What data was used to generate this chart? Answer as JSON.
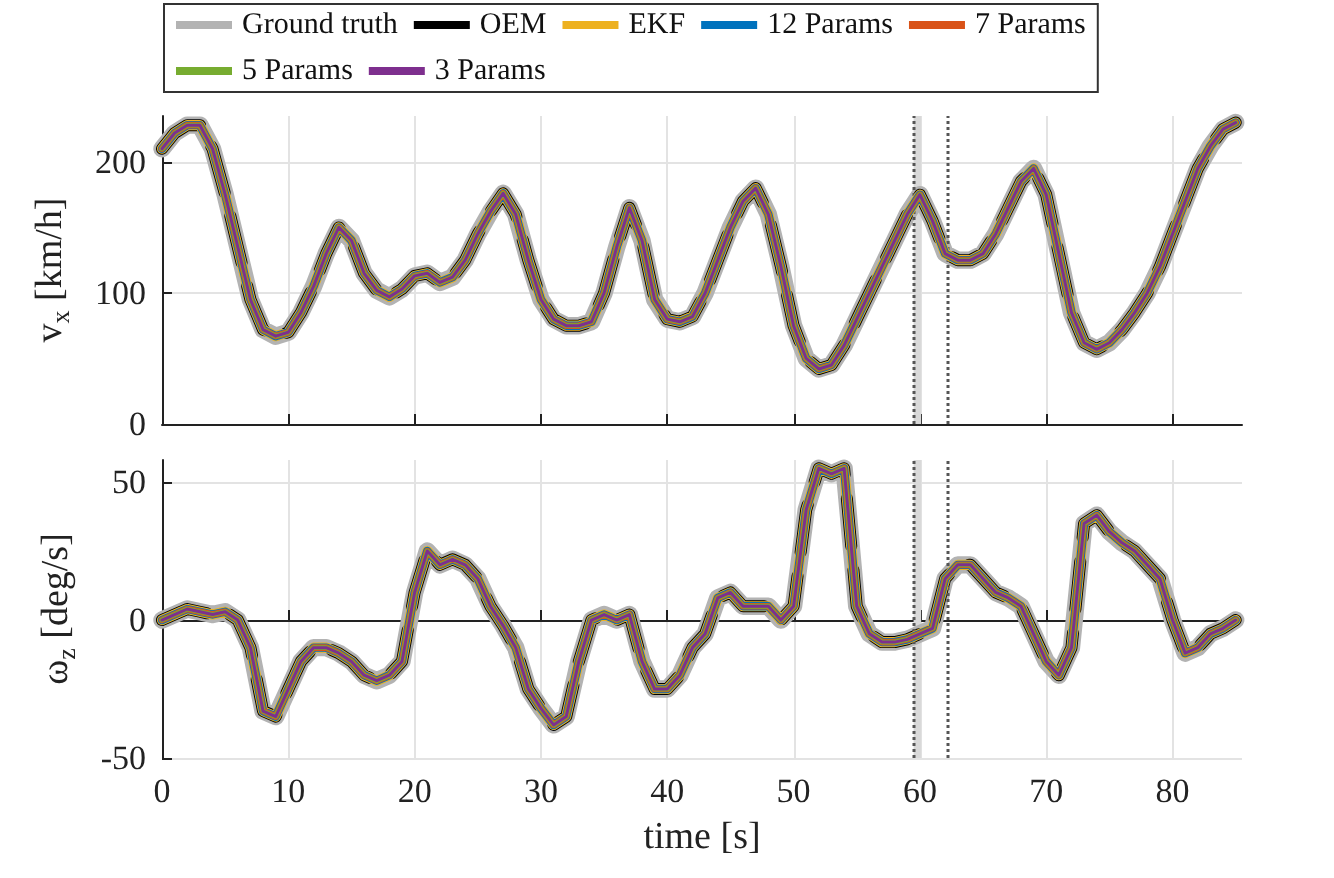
{
  "chart_data": [
    {
      "type": "line",
      "ylabel": "v$_{x}$ [km/h]",
      "xlim": [
        0,
        85.5
      ],
      "xticks": [
        0,
        10,
        20,
        30,
        40,
        50,
        60,
        70,
        80
      ],
      "ylim": [
        0,
        235
      ],
      "yticks": [
        0,
        100,
        200
      ],
      "tick_labels": "y",
      "grid": true,
      "legend": "top",
      "marker": "none",
      "x": [
        0,
        1,
        2,
        3,
        4,
        5,
        6,
        7,
        8,
        9,
        10,
        11,
        12,
        13,
        14,
        15,
        16,
        17,
        18,
        19,
        20,
        21,
        22,
        23,
        24,
        25,
        26,
        27,
        28,
        29,
        30,
        31,
        32,
        33,
        34,
        35,
        36,
        37,
        38,
        39,
        40,
        41,
        42,
        43,
        44,
        45,
        46,
        47,
        48,
        49,
        50,
        51,
        52,
        53,
        54,
        55,
        56,
        57,
        58,
        59,
        60,
        61,
        62,
        63,
        64,
        65,
        66,
        67,
        68,
        69,
        70,
        71,
        72,
        73,
        74,
        75,
        76,
        77,
        78,
        79,
        80,
        81,
        82,
        83,
        84,
        85
      ],
      "bands": [
        {
          "axis": "x",
          "from": 59.5,
          "to": 60.1,
          "color": "#d9d9d9"
        }
      ],
      "ref_lines": [
        {
          "axis": "x",
          "value": 59.5,
          "color": "#555555",
          "line_style": "dotted"
        },
        {
          "axis": "x",
          "value": 62.2,
          "color": "#555555",
          "line_style": "dotted"
        }
      ],
      "series": [
        {
          "name": "Ground truth",
          "color": "#b3b3b3",
          "values": [
            210,
            222,
            228,
            228,
            210,
            175,
            135,
            95,
            72,
            67,
            70,
            85,
            105,
            130,
            150,
            140,
            115,
            102,
            97,
            103,
            113,
            115,
            108,
            112,
            125,
            145,
            162,
            176,
            160,
            125,
            95,
            80,
            75,
            75,
            78,
            100,
            135,
            165,
            140,
            95,
            80,
            78,
            82,
            100,
            125,
            150,
            170,
            180,
            160,
            120,
            75,
            50,
            42,
            45,
            60,
            80,
            100,
            120,
            140,
            160,
            175,
            155,
            130,
            125,
            125,
            130,
            145,
            165,
            185,
            195,
            175,
            130,
            85,
            62,
            57,
            62,
            72,
            85,
            100,
            120,
            145,
            170,
            195,
            212,
            225,
            230
          ]
        },
        {
          "name": "OEM",
          "color": "#000000",
          "line_style": "dashed",
          "values": [
            210,
            222,
            228,
            228,
            210,
            175,
            135,
            95,
            72,
            67,
            70,
            85,
            105,
            130,
            150,
            140,
            115,
            102,
            97,
            103,
            113,
            115,
            108,
            112,
            125,
            145,
            162,
            176,
            160,
            125,
            95,
            80,
            75,
            75,
            78,
            100,
            135,
            165,
            140,
            95,
            80,
            78,
            82,
            100,
            125,
            150,
            170,
            180,
            160,
            120,
            75,
            50,
            42,
            45,
            60,
            80,
            100,
            120,
            140,
            160,
            175,
            155,
            130,
            125,
            125,
            130,
            145,
            165,
            185,
            195,
            175,
            130,
            85,
            62,
            57,
            62,
            72,
            85,
            100,
            120,
            145,
            170,
            195,
            212,
            225,
            230
          ]
        },
        {
          "name": "EKF",
          "color": "#edb120",
          "values": [
            210,
            222,
            228,
            228,
            210,
            175,
            135,
            95,
            72,
            67,
            70,
            85,
            105,
            130,
            150,
            140,
            115,
            102,
            97,
            103,
            113,
            115,
            108,
            112,
            125,
            145,
            162,
            176,
            160,
            125,
            95,
            80,
            75,
            75,
            78,
            100,
            135,
            165,
            140,
            95,
            80,
            78,
            82,
            100,
            125,
            150,
            170,
            180,
            160,
            120,
            75,
            50,
            42,
            45,
            60,
            80,
            100,
            120,
            140,
            160,
            175,
            155,
            130,
            125,
            125,
            130,
            145,
            165,
            185,
            195,
            175,
            130,
            85,
            62,
            57,
            62,
            72,
            85,
            100,
            120,
            145,
            170,
            195,
            212,
            225,
            230
          ]
        },
        {
          "name": "12 Params",
          "color": "#0072bd",
          "values": [
            210,
            222,
            228,
            228,
            210,
            175,
            135,
            95,
            72,
            67,
            70,
            85,
            105,
            130,
            150,
            140,
            115,
            102,
            97,
            103,
            113,
            115,
            108,
            112,
            125,
            145,
            162,
            176,
            160,
            125,
            95,
            80,
            75,
            75,
            78,
            100,
            135,
            165,
            140,
            95,
            80,
            78,
            82,
            100,
            125,
            150,
            170,
            180,
            160,
            120,
            75,
            50,
            42,
            45,
            60,
            80,
            100,
            120,
            140,
            160,
            175,
            155,
            130,
            125,
            125,
            130,
            145,
            165,
            185,
            195,
            175,
            130,
            85,
            62,
            57,
            62,
            72,
            85,
            100,
            120,
            145,
            170,
            195,
            212,
            225,
            230
          ]
        },
        {
          "name": "7 Params",
          "color": "#d95319",
          "values": [
            210,
            222,
            228,
            228,
            210,
            175,
            135,
            95,
            72,
            67,
            70,
            85,
            105,
            130,
            150,
            140,
            115,
            102,
            97,
            103,
            113,
            115,
            108,
            112,
            125,
            145,
            162,
            176,
            160,
            125,
            95,
            80,
            75,
            75,
            78,
            100,
            135,
            165,
            140,
            95,
            80,
            78,
            82,
            100,
            125,
            150,
            170,
            180,
            160,
            120,
            75,
            50,
            42,
            45,
            60,
            80,
            100,
            120,
            140,
            160,
            175,
            155,
            130,
            125,
            125,
            130,
            145,
            165,
            185,
            195,
            175,
            130,
            85,
            62,
            57,
            62,
            72,
            85,
            100,
            120,
            145,
            170,
            195,
            212,
            225,
            230
          ]
        },
        {
          "name": "5 Params",
          "color": "#77ac30",
          "values": [
            210,
            222,
            228,
            228,
            210,
            175,
            135,
            95,
            72,
            67,
            70,
            85,
            105,
            130,
            150,
            140,
            115,
            102,
            97,
            103,
            113,
            115,
            108,
            112,
            125,
            145,
            162,
            176,
            160,
            125,
            95,
            80,
            75,
            75,
            78,
            100,
            135,
            165,
            140,
            95,
            80,
            78,
            82,
            100,
            125,
            150,
            170,
            180,
            160,
            120,
            75,
            50,
            42,
            45,
            60,
            80,
            100,
            120,
            140,
            160,
            175,
            155,
            130,
            125,
            125,
            130,
            145,
            165,
            185,
            195,
            175,
            130,
            85,
            62,
            57,
            62,
            72,
            85,
            100,
            120,
            145,
            170,
            195,
            212,
            225,
            230
          ]
        },
        {
          "name": "3 Params",
          "color": "#7e2f8e",
          "values": [
            210,
            222,
            228,
            228,
            210,
            175,
            135,
            95,
            72,
            67,
            70,
            85,
            105,
            130,
            150,
            140,
            115,
            102,
            97,
            103,
            113,
            115,
            108,
            112,
            125,
            145,
            162,
            176,
            160,
            125,
            95,
            80,
            75,
            75,
            78,
            100,
            135,
            165,
            140,
            95,
            80,
            78,
            82,
            100,
            125,
            150,
            170,
            180,
            160,
            120,
            75,
            50,
            42,
            45,
            60,
            80,
            100,
            120,
            140,
            160,
            175,
            155,
            130,
            125,
            125,
            130,
            145,
            165,
            185,
            195,
            175,
            130,
            85,
            62,
            57,
            62,
            72,
            85,
            100,
            120,
            145,
            170,
            195,
            212,
            225,
            230
          ]
        }
      ]
    },
    {
      "type": "line",
      "xlabel": "time [s]",
      "ylabel": "ω$_{z}$ [deg/s]",
      "xlim": [
        0,
        85.5
      ],
      "xticks": [
        0,
        10,
        20,
        30,
        40,
        50,
        60,
        70,
        80
      ],
      "ylim": [
        -50,
        58
      ],
      "yticks": [
        -50,
        0,
        50
      ],
      "grid": true,
      "marker": "none",
      "x": [
        0,
        1,
        2,
        3,
        4,
        5,
        6,
        7,
        8,
        9,
        10,
        11,
        12,
        13,
        14,
        15,
        16,
        17,
        18,
        19,
        20,
        21,
        22,
        23,
        24,
        25,
        26,
        27,
        28,
        29,
        30,
        31,
        32,
        33,
        34,
        35,
        36,
        37,
        38,
        39,
        40,
        41,
        42,
        43,
        44,
        45,
        46,
        47,
        48,
        49,
        50,
        51,
        52,
        53,
        54,
        55,
        56,
        57,
        58,
        59,
        60,
        61,
        62,
        63,
        64,
        65,
        66,
        67,
        68,
        69,
        70,
        71,
        72,
        73,
        74,
        75,
        76,
        77,
        78,
        79,
        80,
        81,
        82,
        83,
        84,
        85
      ],
      "bands": [
        {
          "axis": "x",
          "from": 59.5,
          "to": 60.1,
          "color": "#d9d9d9"
        }
      ],
      "ref_lines": [
        {
          "axis": "x",
          "value": 59.5,
          "color": "#555555",
          "line_style": "dotted"
        },
        {
          "axis": "x",
          "value": 62.2,
          "color": "#555555",
          "line_style": "dotted"
        }
      ],
      "series": [
        {
          "color": "#b3b3b3",
          "values": [
            0,
            2,
            4,
            3,
            2,
            3,
            0,
            -10,
            -33,
            -35,
            -25,
            -15,
            -10,
            -10,
            -12,
            -15,
            -20,
            -22,
            -20,
            -15,
            10,
            25,
            20,
            22,
            20,
            15,
            5,
            -2,
            -10,
            -25,
            -32,
            -38,
            -35,
            -15,
            0,
            2,
            0,
            2,
            -15,
            -25,
            -25,
            -20,
            -10,
            -5,
            8,
            10,
            5,
            5,
            5,
            0,
            5,
            40,
            55,
            53,
            55,
            5,
            -5,
            -8,
            -8,
            -7,
            -5,
            -3,
            15,
            20,
            20,
            15,
            10,
            8,
            5,
            -5,
            -15,
            -20,
            -10,
            35,
            38,
            32,
            28,
            25,
            20,
            15,
            0,
            -12,
            -10,
            -5,
            -3,
            0
          ]
        },
        {
          "color": "#000000",
          "line_style": "dashed",
          "values": [
            0,
            2,
            4,
            3,
            2,
            3,
            0,
            -10,
            -33,
            -35,
            -25,
            -15,
            -10,
            -10,
            -12,
            -15,
            -20,
            -22,
            -20,
            -15,
            10,
            25,
            20,
            22,
            20,
            15,
            5,
            -2,
            -10,
            -25,
            -32,
            -38,
            -35,
            -15,
            0,
            2,
            0,
            2,
            -15,
            -25,
            -25,
            -20,
            -10,
            -5,
            8,
            10,
            5,
            5,
            5,
            0,
            5,
            40,
            55,
            53,
            55,
            5,
            -5,
            -8,
            -8,
            -7,
            -5,
            -3,
            15,
            20,
            20,
            15,
            10,
            8,
            5,
            -5,
            -15,
            -20,
            -10,
            35,
            38,
            32,
            28,
            25,
            20,
            15,
            0,
            -12,
            -10,
            -5,
            -3,
            0
          ]
        },
        {
          "color": "#edb120",
          "values": [
            0,
            2,
            4,
            3,
            2,
            3,
            0,
            -10,
            -33,
            -35,
            -25,
            -15,
            -10,
            -10,
            -12,
            -15,
            -20,
            -22,
            -20,
            -15,
            10,
            25,
            20,
            22,
            20,
            15,
            5,
            -2,
            -10,
            -25,
            -32,
            -38,
            -35,
            -15,
            0,
            2,
            0,
            2,
            -15,
            -25,
            -25,
            -20,
            -10,
            -5,
            8,
            10,
            5,
            5,
            5,
            0,
            5,
            40,
            55,
            53,
            55,
            5,
            -5,
            -8,
            -8,
            -7,
            -5,
            -3,
            15,
            20,
            20,
            15,
            10,
            8,
            5,
            -5,
            -15,
            -20,
            -10,
            35,
            38,
            32,
            28,
            25,
            20,
            15,
            0,
            -12,
            -10,
            -5,
            -3,
            0
          ]
        },
        {
          "color": "#0072bd",
          "values": [
            0,
            2,
            4,
            3,
            2,
            3,
            0,
            -10,
            -33,
            -35,
            -25,
            -15,
            -10,
            -10,
            -12,
            -15,
            -20,
            -22,
            -20,
            -15,
            10,
            25,
            20,
            22,
            20,
            15,
            5,
            -2,
            -10,
            -25,
            -32,
            -38,
            -35,
            -15,
            0,
            2,
            0,
            2,
            -15,
            -25,
            -25,
            -20,
            -10,
            -5,
            8,
            10,
            5,
            5,
            5,
            0,
            5,
            40,
            55,
            53,
            55,
            5,
            -5,
            -8,
            -8,
            -7,
            -5,
            -3,
            15,
            20,
            20,
            15,
            10,
            8,
            5,
            -5,
            -15,
            -20,
            -10,
            35,
            38,
            32,
            28,
            25,
            20,
            15,
            0,
            -12,
            -10,
            -5,
            -3,
            0
          ]
        },
        {
          "color": "#d95319",
          "values": [
            0,
            2,
            4,
            3,
            2,
            3,
            0,
            -10,
            -33,
            -35,
            -25,
            -15,
            -10,
            -10,
            -12,
            -15,
            -20,
            -22,
            -20,
            -15,
            10,
            25,
            20,
            22,
            20,
            15,
            5,
            -2,
            -10,
            -25,
            -32,
            -38,
            -35,
            -15,
            0,
            2,
            0,
            2,
            -15,
            -25,
            -25,
            -20,
            -10,
            -5,
            8,
            10,
            5,
            5,
            5,
            0,
            5,
            40,
            55,
            53,
            55,
            5,
            -5,
            -8,
            -8,
            -7,
            -5,
            -3,
            15,
            20,
            20,
            15,
            10,
            8,
            5,
            -5,
            -15,
            -20,
            -10,
            35,
            38,
            32,
            28,
            25,
            20,
            15,
            0,
            -12,
            -10,
            -5,
            -3,
            0
          ]
        },
        {
          "color": "#77ac30",
          "values": [
            0,
            2,
            4,
            3,
            2,
            3,
            0,
            -10,
            -33,
            -35,
            -25,
            -15,
            -10,
            -10,
            -12,
            -15,
            -20,
            -22,
            -20,
            -15,
            10,
            25,
            20,
            22,
            20,
            15,
            5,
            -2,
            -10,
            -25,
            -32,
            -38,
            -35,
            -15,
            0,
            2,
            0,
            2,
            -15,
            -25,
            -25,
            -20,
            -10,
            -5,
            8,
            10,
            5,
            5,
            5,
            0,
            5,
            40,
            55,
            53,
            55,
            5,
            -5,
            -8,
            -8,
            -7,
            -5,
            -3,
            15,
            20,
            20,
            15,
            10,
            8,
            5,
            -5,
            -15,
            -20,
            -10,
            35,
            38,
            32,
            28,
            25,
            20,
            15,
            0,
            -12,
            -10,
            -5,
            -3,
            0
          ]
        },
        {
          "color": "#7e2f8e",
          "values": [
            0,
            2,
            4,
            3,
            2,
            3,
            0,
            -10,
            -33,
            -35,
            -25,
            -15,
            -10,
            -10,
            -12,
            -15,
            -20,
            -22,
            -20,
            -15,
            10,
            25,
            20,
            22,
            20,
            15,
            5,
            -2,
            -10,
            -25,
            -32,
            -38,
            -35,
            -15,
            0,
            2,
            0,
            2,
            -15,
            -25,
            -25,
            -20,
            -10,
            -5,
            8,
            10,
            5,
            5,
            5,
            0,
            5,
            40,
            55,
            53,
            55,
            5,
            -5,
            -8,
            -8,
            -7,
            -5,
            -3,
            15,
            20,
            20,
            15,
            10,
            8,
            5,
            -5,
            -15,
            -20,
            -10,
            35,
            38,
            32,
            28,
            25,
            20,
            15,
            0,
            -12,
            -10,
            -5,
            -3,
            0
          ]
        }
      ]
    }
  ]
}
